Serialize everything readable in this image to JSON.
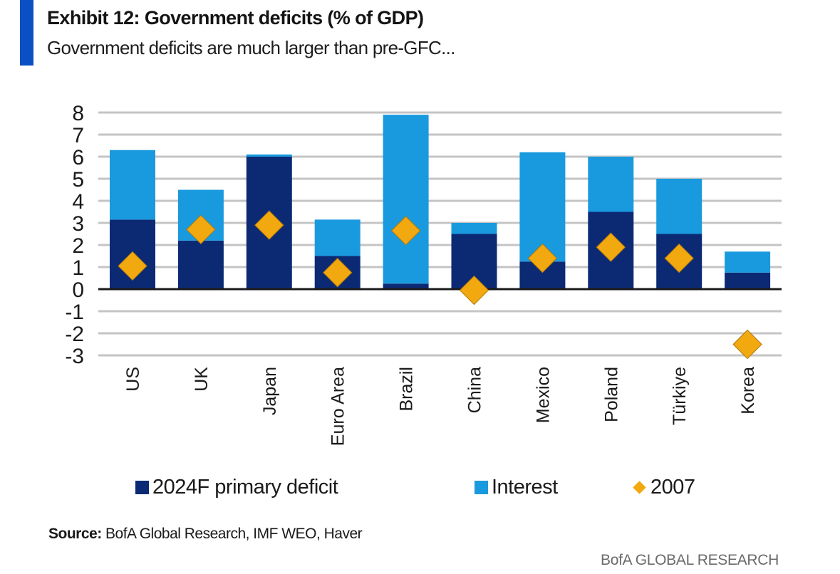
{
  "header": {
    "title": "Exhibit 12: Government deficits (% of GDP)",
    "subtitle": "Government deficits are much larger than pre-GFC...",
    "accent_color": "#0a4fc4"
  },
  "chart_data": {
    "type": "bar",
    "stacked": true,
    "title": "Exhibit 12: Government deficits (% of GDP)",
    "subtitle": "Government deficits are much larger than pre-GFC...",
    "xlabel": "",
    "ylabel": "",
    "ylim": [
      -3,
      8
    ],
    "yticks": [
      8,
      7,
      6,
      5,
      4,
      3,
      2,
      1,
      0,
      -1,
      -2,
      -3
    ],
    "grid": true,
    "legend_position": "bottom",
    "categories": [
      "US",
      "UK",
      "Japan",
      "Euro Area",
      "Brazil",
      "China",
      "Mexico",
      "Poland",
      "Türkiye",
      "Korea"
    ],
    "series": [
      {
        "name": "2024F primary deficit",
        "kind": "bar",
        "color": "#0c2a74",
        "values": [
          3.15,
          2.2,
          6.0,
          1.5,
          0.25,
          2.5,
          1.25,
          3.5,
          2.5,
          0.75
        ]
      },
      {
        "name": "Interest",
        "kind": "bar",
        "color": "#1a9ade",
        "values": [
          3.15,
          2.3,
          0.1,
          1.65,
          7.65,
          0.5,
          4.95,
          2.5,
          2.5,
          0.95
        ]
      },
      {
        "name": "2007",
        "kind": "marker-diamond",
        "color": "#f2a90f",
        "values": [
          1.05,
          2.7,
          2.9,
          0.75,
          2.65,
          -0.05,
          1.4,
          1.9,
          1.4,
          -2.5
        ]
      }
    ]
  },
  "legend": {
    "items": [
      {
        "label": "2024F primary deficit",
        "color": "#0c2a74",
        "shape": "square"
      },
      {
        "label": "Interest",
        "color": "#1a9ade",
        "shape": "square"
      },
      {
        "label": "2007",
        "color": "#f2a90f",
        "shape": "diamond"
      }
    ]
  },
  "footer": {
    "source_label": "Source:",
    "source_text": " BofA Global Research, IMF WEO, Haver",
    "brand": "BofA GLOBAL RESEARCH"
  }
}
